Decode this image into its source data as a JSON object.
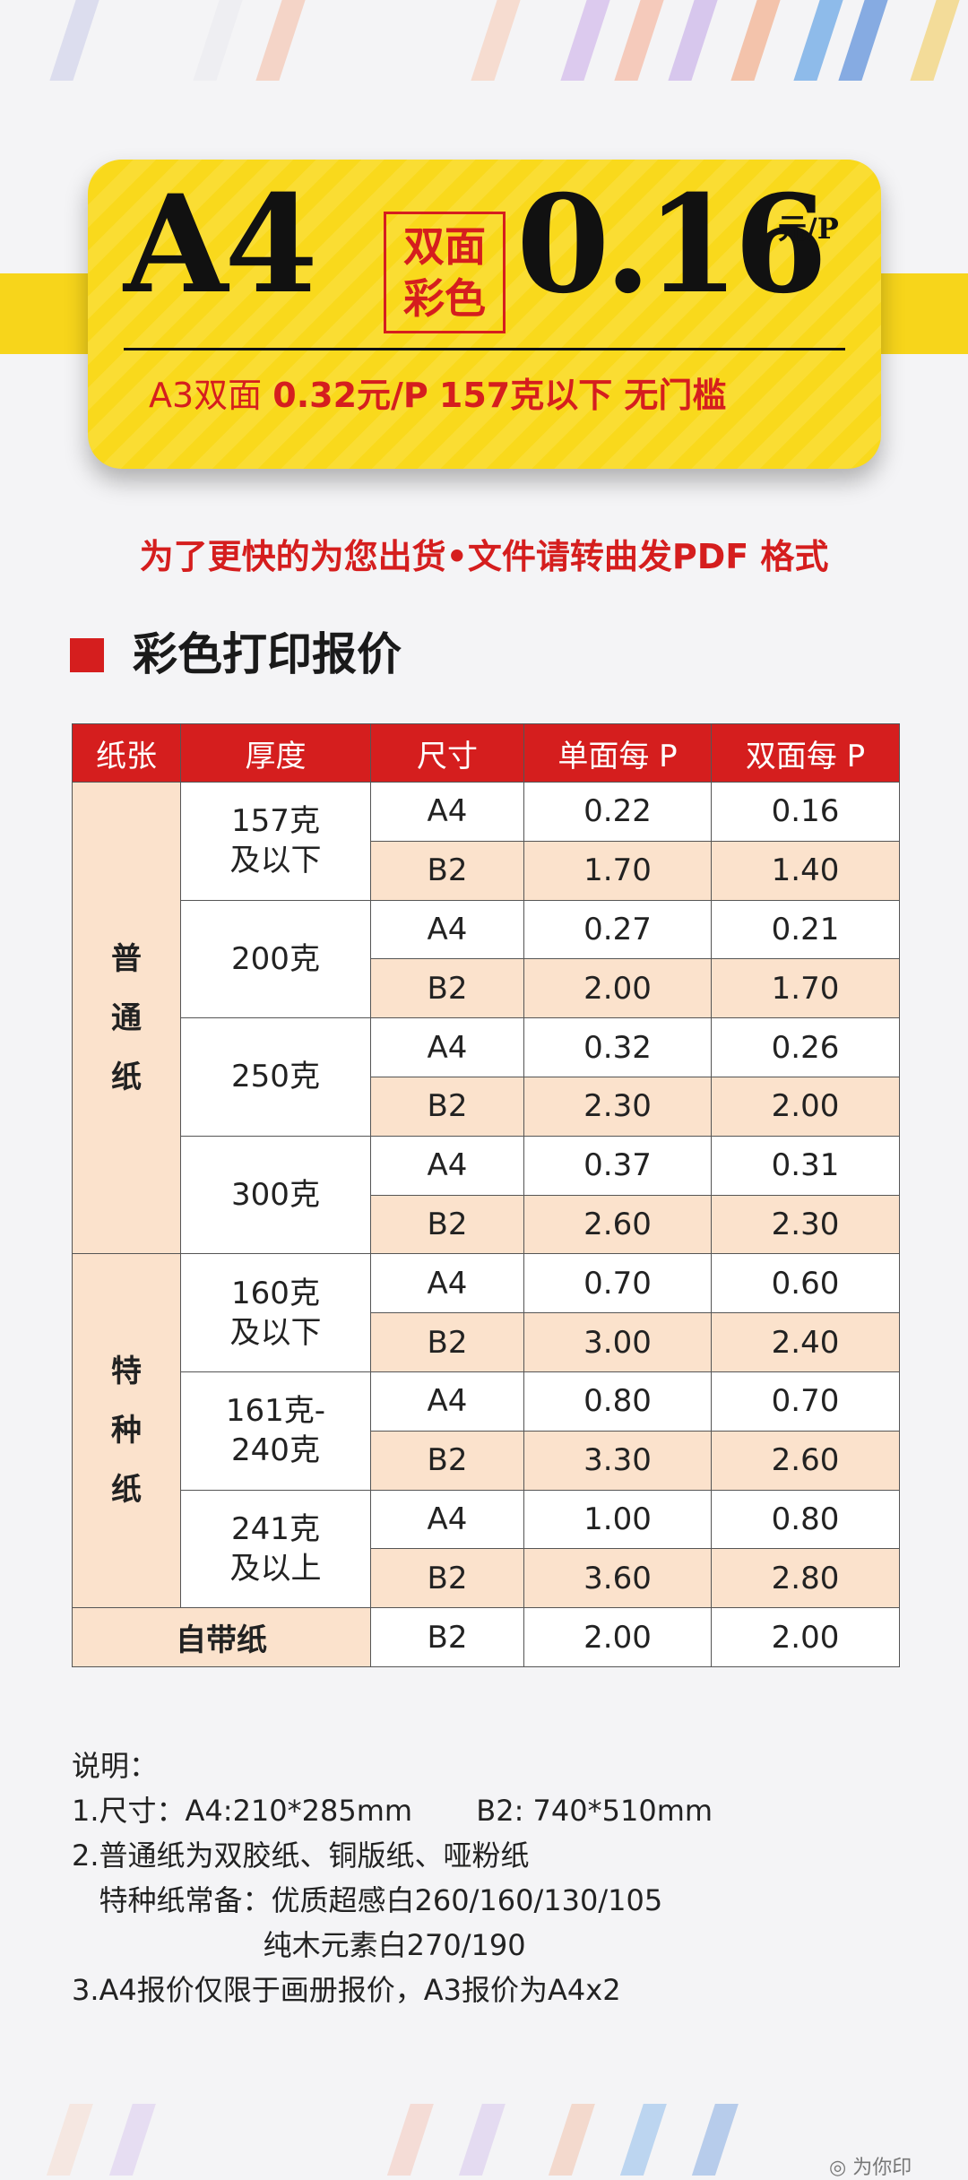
{
  "colors": {
    "accent": "#d51e1e",
    "banner": "#f9d91c",
    "row_alt": "#fbe2cc"
  },
  "banner": {
    "size": "A4",
    "tag_line1": "双面",
    "tag_line2": "彩色",
    "price": "0.16",
    "unit": "元/P",
    "sub_prefix": "A3双面",
    "sub_price": "0.32元/P",
    "sub_suffix": "157克以下 无门槛"
  },
  "notice": "为了更快的为您出货•文件请转曲发PDF 格式",
  "section_title": "彩色打印报价",
  "table": {
    "headers": [
      "纸张",
      "厚度",
      "尺寸",
      "单面每 P",
      "双面每 P"
    ],
    "categories": {
      "plain": "普\n通\n纸",
      "special": "特\n种\n纸",
      "own": "自带纸"
    },
    "groups": [
      {
        "thickness": "157克\n及以下",
        "rows": [
          {
            "size": "A4",
            "single": "0.22",
            "double": "0.16"
          },
          {
            "size": "B2",
            "single": "1.70",
            "double": "1.40"
          }
        ]
      },
      {
        "thickness": "200克",
        "rows": [
          {
            "size": "A4",
            "single": "0.27",
            "double": "0.21"
          },
          {
            "size": "B2",
            "single": "2.00",
            "double": "1.70"
          }
        ]
      },
      {
        "thickness": "250克",
        "rows": [
          {
            "size": "A4",
            "single": "0.32",
            "double": "0.26"
          },
          {
            "size": "B2",
            "single": "2.30",
            "double": "2.00"
          }
        ]
      },
      {
        "thickness": "300克",
        "rows": [
          {
            "size": "A4",
            "single": "0.37",
            "double": "0.31"
          },
          {
            "size": "B2",
            "single": "2.60",
            "double": "2.30"
          }
        ]
      },
      {
        "thickness": "160克\n及以下",
        "rows": [
          {
            "size": "A4",
            "single": "0.70",
            "double": "0.60"
          },
          {
            "size": "B2",
            "single": "3.00",
            "double": "2.40"
          }
        ]
      },
      {
        "thickness": "161克-\n240克",
        "rows": [
          {
            "size": "A4",
            "single": "0.80",
            "double": "0.70"
          },
          {
            "size": "B2",
            "single": "3.30",
            "double": "2.60"
          }
        ]
      },
      {
        "thickness": "241克\n及以上",
        "rows": [
          {
            "size": "A4",
            "single": "1.00",
            "double": "0.80"
          },
          {
            "size": "B2",
            "single": "3.60",
            "double": "2.80"
          }
        ]
      }
    ],
    "own_row": {
      "size": "B2",
      "single": "2.00",
      "double": "2.00"
    }
  },
  "notes": [
    "说明：",
    "1.尺寸：A4:210*285mm       B2: 740*510mm",
    "2.普通纸为双胶纸、铜版纸、哑粉纸",
    "   特种纸常备：优质超感白260/160/130/105",
    "                     纯木元素白270/190",
    "3.A4报价仅限于画册报价，A3报价为A4x2"
  ],
  "watermark": "为你印"
}
